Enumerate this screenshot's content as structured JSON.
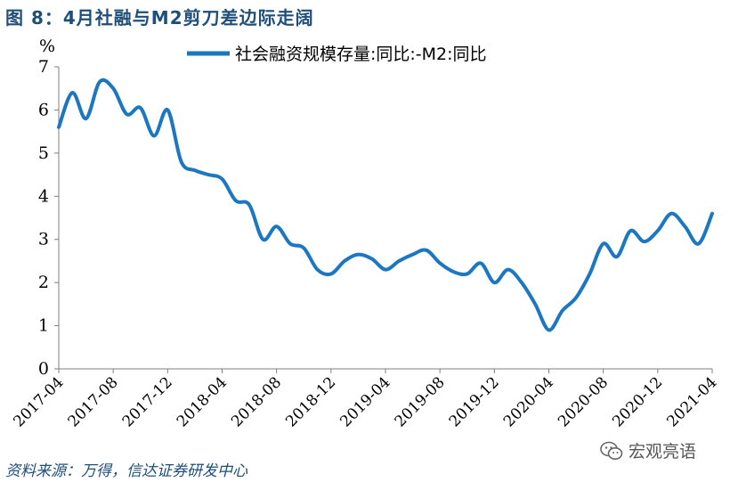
{
  "figure": {
    "title": "图 8：4月社融与M2剪刀差边际走阔",
    "source": "资料来源：万得，信达证券研发中心",
    "watermark": "宏观亮语",
    "watermark_icon": "wechat-icon"
  },
  "colors": {
    "line": "#1c77c3",
    "title": "#1f4e79"
  },
  "chart_data": {
    "type": "line",
    "ylabel": "%",
    "ylim": [
      0,
      7
    ],
    "yticks": [
      0,
      1,
      2,
      3,
      4,
      5,
      6,
      7
    ],
    "xlim": [
      "2017-04",
      "2021-04"
    ],
    "xticks": [
      "2017-04",
      "2017-08",
      "2017-12",
      "2018-04",
      "2018-08",
      "2018-12",
      "2019-04",
      "2019-08",
      "2019-12",
      "2020-04",
      "2020-08",
      "2020-12",
      "2021-04"
    ],
    "legend_position": "top",
    "grid": false,
    "series": [
      {
        "name": "社会融资规模存量:同比:-M2:同比",
        "x": [
          "2017-04",
          "2017-05",
          "2017-06",
          "2017-07",
          "2017-08",
          "2017-09",
          "2017-10",
          "2017-11",
          "2017-12",
          "2018-01",
          "2018-02",
          "2018-03",
          "2018-04",
          "2018-05",
          "2018-06",
          "2018-07",
          "2018-08",
          "2018-09",
          "2018-10",
          "2018-11",
          "2018-12",
          "2019-01",
          "2019-02",
          "2019-03",
          "2019-04",
          "2019-05",
          "2019-06",
          "2019-07",
          "2019-08",
          "2019-09",
          "2019-10",
          "2019-11",
          "2019-12",
          "2020-01",
          "2020-02",
          "2020-03",
          "2020-04",
          "2020-05",
          "2020-06",
          "2020-07",
          "2020-08",
          "2020-09",
          "2020-10",
          "2020-11",
          "2020-12",
          "2021-01",
          "2021-02",
          "2021-03",
          "2021-04"
        ],
        "values": [
          5.6,
          6.4,
          5.8,
          6.65,
          6.5,
          5.9,
          6.05,
          5.4,
          6.0,
          4.8,
          4.6,
          4.5,
          4.4,
          3.9,
          3.8,
          3.0,
          3.3,
          2.9,
          2.8,
          2.3,
          2.2,
          2.5,
          2.65,
          2.55,
          2.3,
          2.5,
          2.65,
          2.75,
          2.45,
          2.25,
          2.2,
          2.45,
          2.0,
          2.3,
          2.0,
          1.5,
          0.9,
          1.35,
          1.65,
          2.2,
          2.9,
          2.6,
          3.2,
          2.95,
          3.2,
          3.6,
          3.3,
          2.9,
          3.6
        ]
      }
    ]
  }
}
